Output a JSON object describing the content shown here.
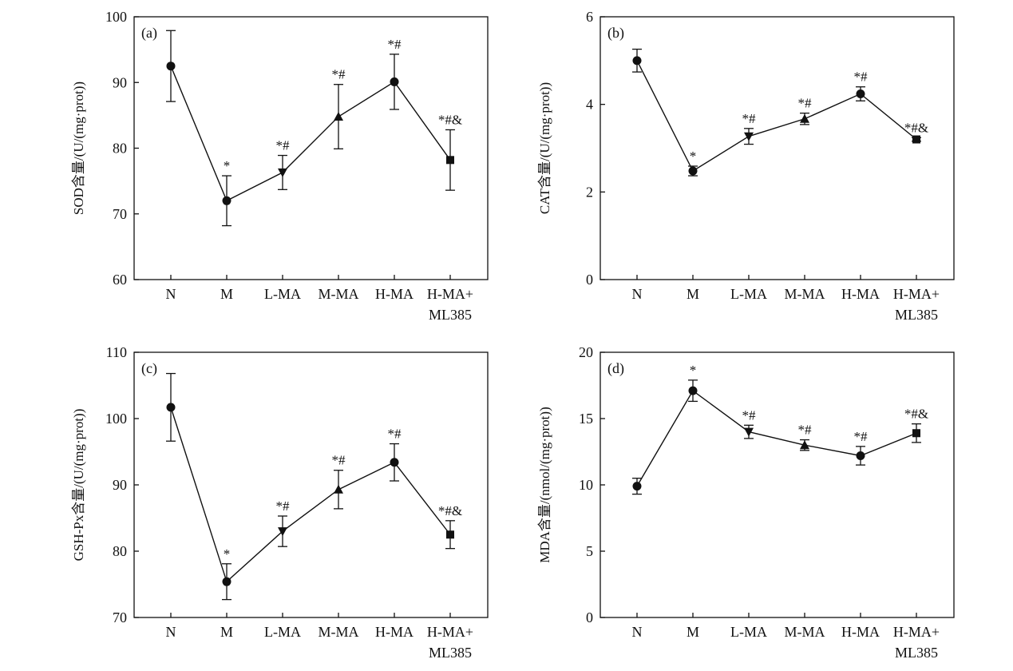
{
  "chart_data": [
    {
      "type": "line",
      "panel_label": "(a)",
      "ylabel": "SOD含量/(U/(mg·prot))",
      "ylim": [
        60,
        100
      ],
      "yticks": [
        60,
        70,
        80,
        90,
        100
      ],
      "categories": [
        "N",
        "M",
        "L-MA",
        "M-MA",
        "H-MA",
        "H-MA+\nML385"
      ],
      "values": [
        92.5,
        72.0,
        76.3,
        84.8,
        90.1,
        78.2
      ],
      "errors": [
        5.4,
        3.8,
        2.6,
        4.9,
        4.2,
        4.6
      ],
      "markers": [
        "circle",
        "circle",
        "triangle-down",
        "triangle-up",
        "circle",
        "square"
      ],
      "annotations": [
        "",
        "*",
        "*#",
        "*#",
        "*#",
        "*#&"
      ],
      "grid": false
    },
    {
      "type": "line",
      "panel_label": "(b)",
      "ylabel": "CAT含量/(U/(mg·prot))",
      "ylim": [
        0,
        6
      ],
      "yticks": [
        0,
        2,
        4,
        6
      ],
      "categories": [
        "N",
        "M",
        "L-MA",
        "M-MA",
        "H-MA",
        "H-MA+\nML385"
      ],
      "values": [
        5.0,
        2.48,
        3.27,
        3.67,
        4.24,
        3.2
      ],
      "errors": [
        0.26,
        0.11,
        0.18,
        0.13,
        0.16,
        0.04
      ],
      "markers": [
        "circle",
        "circle",
        "triangle-down",
        "triangle-up",
        "circle",
        "square"
      ],
      "annotations": [
        "",
        "*",
        "*#",
        "*#",
        "*#",
        "*#&"
      ],
      "grid": false
    },
    {
      "type": "line",
      "panel_label": "(c)",
      "ylabel": "GSH-Px含量/(U/(mg·prot))",
      "ylim": [
        70,
        110
      ],
      "yticks": [
        70,
        80,
        90,
        100,
        110
      ],
      "categories": [
        "N",
        "M",
        "L-MA",
        "M-MA",
        "H-MA",
        "H-MA+\nML385"
      ],
      "values": [
        101.7,
        75.4,
        83.0,
        89.3,
        93.4,
        82.5
      ],
      "errors": [
        5.1,
        2.7,
        2.3,
        2.9,
        2.8,
        2.1
      ],
      "markers": [
        "circle",
        "circle",
        "triangle-down",
        "triangle-up",
        "circle",
        "square"
      ],
      "annotations": [
        "",
        "*",
        "*#",
        "*#",
        "*#",
        "*#&"
      ],
      "grid": false
    },
    {
      "type": "line",
      "panel_label": "(d)",
      "ylabel": "MDA含量/(nmol/(mg·prot))",
      "ylim": [
        0,
        20
      ],
      "yticks": [
        0,
        5,
        10,
        15,
        20
      ],
      "categories": [
        "N",
        "M",
        "L-MA",
        "M-MA",
        "H-MA",
        "H-MA+\nML385"
      ],
      "values": [
        9.9,
        17.1,
        14.0,
        13.0,
        12.2,
        13.9
      ],
      "errors": [
        0.6,
        0.8,
        0.5,
        0.4,
        0.7,
        0.7
      ],
      "markers": [
        "circle",
        "circle",
        "triangle-down",
        "triangle-up",
        "circle",
        "square"
      ],
      "annotations": [
        "",
        "*",
        "*#",
        "*#",
        "*#",
        "*#&"
      ],
      "grid": false
    }
  ]
}
